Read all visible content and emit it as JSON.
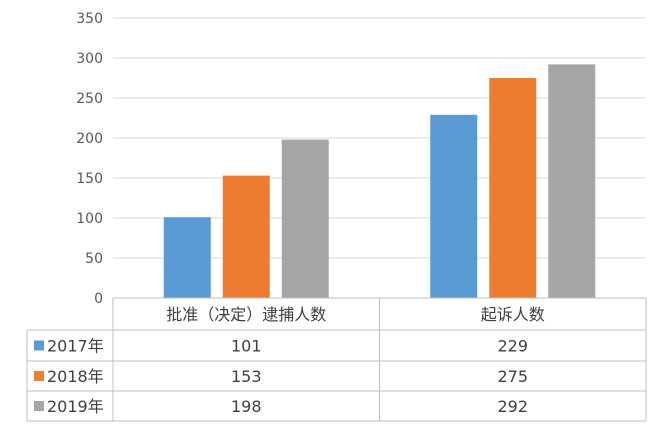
{
  "chart_data": {
    "type": "bar",
    "categories": [
      "批准（决定）逮捕人数",
      "起诉人数"
    ],
    "series": [
      {
        "name": "2017年",
        "color": "#5B9BD5",
        "values": [
          101,
          229
        ]
      },
      {
        "name": "2018年",
        "color": "#ED7D31",
        "values": [
          153,
          275
        ]
      },
      {
        "name": "2019年",
        "color": "#A5A5A5",
        "values": [
          198,
          292
        ]
      }
    ],
    "yticks": [
      0,
      50,
      100,
      150,
      200,
      250,
      300,
      350
    ],
    "ylim": [
      0,
      350
    ],
    "grid": true,
    "legend": "data-table-left"
  }
}
